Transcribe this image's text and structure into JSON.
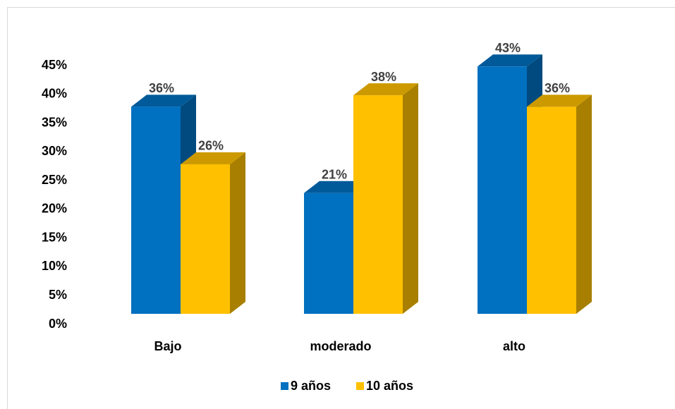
{
  "chart_data": {
    "type": "bar3d",
    "categories": [
      "Bajo",
      "moderado",
      "alto"
    ],
    "series": [
      {
        "name": "9 años",
        "color": "#0070c0",
        "values": [
          36,
          21,
          43
        ],
        "value_labels": [
          "36%",
          "21%",
          "43%"
        ]
      },
      {
        "name": "10 años",
        "color": "#ffc000",
        "values": [
          26,
          38,
          36
        ],
        "value_labels": [
          "26%",
          "38%",
          "36%"
        ]
      }
    ],
    "ylim": [
      0,
      45
    ],
    "yticks": [
      {
        "value": 0,
        "label": "0%"
      },
      {
        "value": 5,
        "label": "5%"
      },
      {
        "value": 10,
        "label": "10%"
      },
      {
        "value": 15,
        "label": "15%"
      },
      {
        "value": 20,
        "label": "20%"
      },
      {
        "value": 25,
        "label": "25%"
      },
      {
        "value": 30,
        "label": "30%"
      },
      {
        "value": 35,
        "label": "35%"
      },
      {
        "value": 40,
        "label": "40%"
      },
      {
        "value": 45,
        "label": "45%"
      }
    ],
    "legend": "bottom"
  }
}
